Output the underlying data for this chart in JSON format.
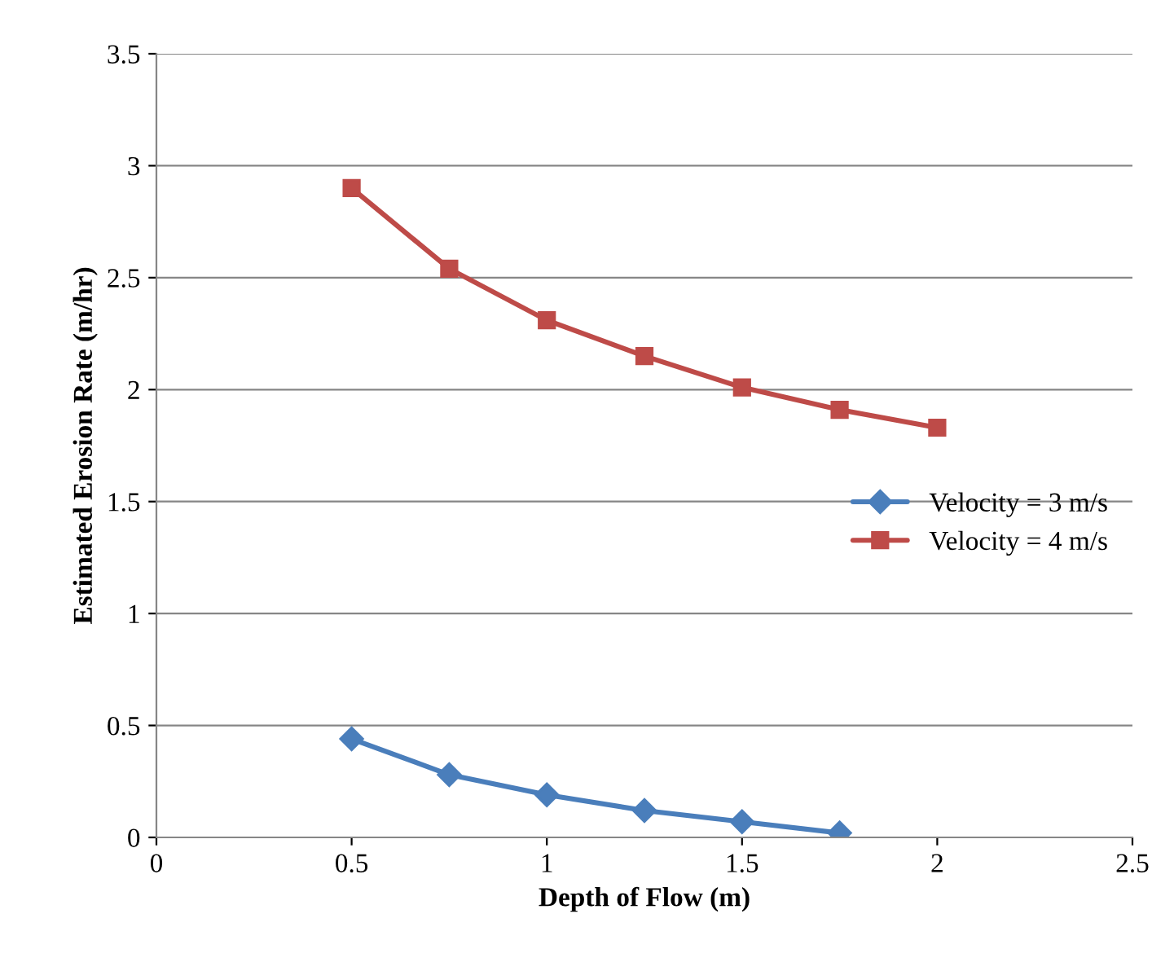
{
  "chart_data": {
    "type": "line",
    "xlabel": "Depth of Flow (m)",
    "ylabel": "Estimated Erosion Rate (m/hr)",
    "x": [
      0.5,
      0.75,
      1.0,
      1.25,
      1.5,
      1.75,
      2.0
    ],
    "series": [
      {
        "name": "Velocity = 3 m/s",
        "color": "#4a7ebb",
        "marker": "diamond",
        "values": [
          0.44,
          0.28,
          0.19,
          0.12,
          0.07,
          0.02,
          null
        ]
      },
      {
        "name": "Velocity = 4 m/s",
        "color": "#be4b48",
        "marker": "square",
        "values": [
          2.9,
          2.54,
          2.31,
          2.15,
          2.01,
          1.91,
          1.83
        ]
      }
    ],
    "xlim": [
      0,
      2.5
    ],
    "xticks": [
      0,
      0.5,
      1,
      1.5,
      2,
      2.5
    ],
    "ylim": [
      0,
      3.5
    ],
    "yticks": [
      0,
      0.5,
      1,
      1.5,
      2,
      2.5,
      3,
      3.5
    ],
    "grid": "y",
    "legend": "right",
    "line_style": "solid"
  }
}
